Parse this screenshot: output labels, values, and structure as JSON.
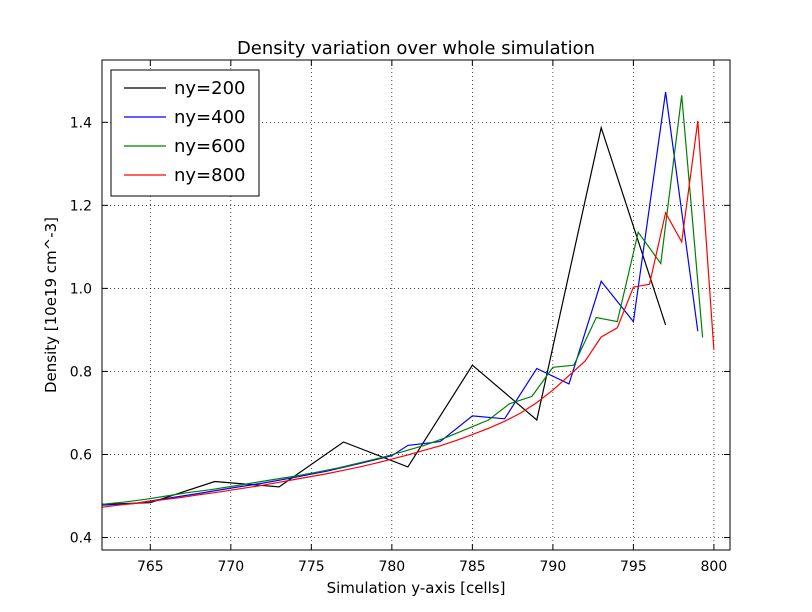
{
  "chart_data": {
    "type": "line",
    "title": "Density variation over whole simulation",
    "xlabel": "Simulation y-axis [cells]",
    "ylabel": "Density [10e19 cm^-3]",
    "xlim": [
      762,
      801
    ],
    "ylim": [
      0.37,
      1.55
    ],
    "xticks": [
      765,
      770,
      775,
      780,
      785,
      790,
      795,
      800
    ],
    "yticks": [
      0.4,
      0.6,
      0.8,
      1.0,
      1.2,
      1.4
    ],
    "xtick_labels": [
      "765",
      "770",
      "775",
      "780",
      "785",
      "790",
      "795",
      "800"
    ],
    "ytick_labels": [
      "0.4",
      "0.6",
      "0.8",
      "1.0",
      "1.2",
      "1.4"
    ],
    "grid": true,
    "legend_position": "top-left",
    "series": [
      {
        "name": "ny=200",
        "color": "#000000",
        "x": [
          762,
          765,
          769,
          773,
          777,
          781,
          785,
          789,
          793,
          797
        ],
        "y": [
          0.48,
          0.484,
          0.535,
          0.522,
          0.63,
          0.57,
          0.815,
          0.683,
          1.387,
          0.912
        ]
      },
      {
        "name": "ny=400",
        "color": "#0000ff",
        "x": [
          762,
          764,
          766,
          768,
          770,
          772,
          774,
          776,
          778,
          780,
          781,
          783,
          785,
          787,
          789,
          791,
          793,
          795,
          797,
          799
        ],
        "y": [
          0.478,
          0.482,
          0.494,
          0.506,
          0.519,
          0.531,
          0.545,
          0.56,
          0.578,
          0.597,
          0.622,
          0.631,
          0.693,
          0.686,
          0.807,
          0.77,
          1.017,
          0.92,
          1.473,
          0.897
        ]
      },
      {
        "name": "ny=600",
        "color": "#008000",
        "x": [
          762,
          763.3,
          764.7,
          766,
          767.3,
          768.7,
          770,
          771.3,
          772.7,
          774,
          775.3,
          776.7,
          778,
          779.3,
          780.7,
          782,
          783.3,
          784.7,
          786,
          787.3,
          788.7,
          790,
          791.3,
          792.7,
          794,
          795.3,
          796.7,
          798,
          799.3
        ],
        "y": [
          0.48,
          0.485,
          0.492,
          0.5,
          0.508,
          0.515,
          0.523,
          0.531,
          0.54,
          0.548,
          0.557,
          0.568,
          0.58,
          0.592,
          0.607,
          0.622,
          0.64,
          0.662,
          0.683,
          0.722,
          0.74,
          0.81,
          0.815,
          0.93,
          0.92,
          1.135,
          1.06,
          1.465,
          0.882
        ]
      },
      {
        "name": "ny=800",
        "color": "#ff0000",
        "x": [
          762,
          763,
          764,
          765,
          766,
          767,
          768,
          769,
          770,
          771,
          772,
          773,
          774,
          775,
          776,
          777,
          778,
          779,
          780,
          781,
          782,
          783,
          784,
          785,
          786,
          787,
          788,
          789,
          790,
          791,
          792,
          793,
          794,
          795,
          796,
          797,
          798,
          799,
          800
        ],
        "y": [
          0.473,
          0.478,
          0.482,
          0.487,
          0.492,
          0.497,
          0.503,
          0.508,
          0.514,
          0.52,
          0.526,
          0.533,
          0.54,
          0.547,
          0.554,
          0.562,
          0.57,
          0.579,
          0.589,
          0.599,
          0.61,
          0.621,
          0.634,
          0.648,
          0.663,
          0.68,
          0.7,
          0.725,
          0.755,
          0.79,
          0.825,
          0.883,
          0.905,
          1.003,
          1.01,
          1.182,
          1.112,
          1.403,
          0.852
        ]
      }
    ]
  }
}
